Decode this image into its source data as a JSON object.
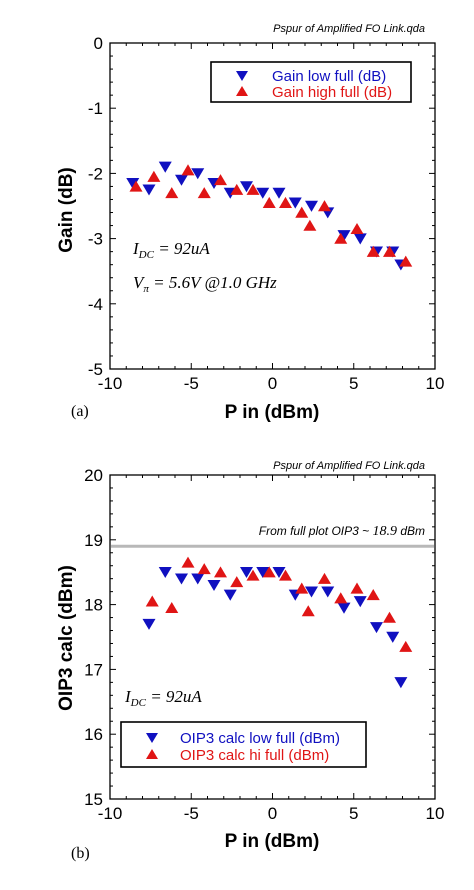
{
  "colors": {
    "low": "#1010c0",
    "high": "#e01515",
    "refline": "#b8b8b8"
  },
  "chart_data": [
    {
      "type": "scatter",
      "panel": "(a)",
      "file_label": "Pspur of Amplified FO Link.qda",
      "xlabel": "P in (dBm)",
      "ylabel": "Gain (dB)",
      "xlim": [
        -10,
        10
      ],
      "ylim": [
        -5,
        0
      ],
      "xticks": [
        -10,
        -5,
        0,
        5,
        10
      ],
      "yticks": [
        0,
        -1,
        -2,
        -3,
        -4,
        -5
      ],
      "annotations": [
        {
          "base": "I",
          "sub": "DC",
          "rest": " = 92uA"
        },
        {
          "base": "V",
          "sub": "π",
          "rest": " = 5.6V @1.0 GHz"
        }
      ],
      "series": [
        {
          "name": "Gain low full (dB)",
          "marker": "triangle-down",
          "color": "#1010c0",
          "x": [
            -8.6,
            -7.6,
            -6.6,
            -5.6,
            -4.6,
            -3.6,
            -2.6,
            -1.6,
            -0.6,
            0.4,
            1.4,
            2.4,
            3.4,
            4.4,
            5.4,
            6.4,
            7.4,
            7.9
          ],
          "y": [
            -2.15,
            -2.25,
            -1.9,
            -2.1,
            -2.0,
            -2.15,
            -2.3,
            -2.2,
            -2.3,
            -2.3,
            -2.45,
            -2.5,
            -2.6,
            -2.95,
            -3.0,
            -3.2,
            -3.2,
            -3.4
          ]
        },
        {
          "name": "Gain high full (dB)",
          "marker": "triangle-up",
          "color": "#e01515",
          "x": [
            -8.4,
            -7.3,
            -6.2,
            -5.2,
            -4.2,
            -3.2,
            -2.2,
            -1.2,
            -0.2,
            0.8,
            1.8,
            2.3,
            3.2,
            4.2,
            5.2,
            6.2,
            7.2,
            8.2
          ],
          "y": [
            -2.2,
            -2.05,
            -2.3,
            -1.95,
            -2.3,
            -2.1,
            -2.25,
            -2.25,
            -2.45,
            -2.45,
            -2.6,
            -2.8,
            -2.5,
            -3.0,
            -2.85,
            -3.2,
            -3.2,
            -3.35
          ]
        }
      ]
    },
    {
      "type": "scatter",
      "panel": "(b)",
      "file_label": "Pspur of Amplified FO Link.qda",
      "xlabel": "P in (dBm)",
      "ylabel": "OIP3 calc (dBm)",
      "xlim": [
        -10,
        10
      ],
      "ylim": [
        15,
        20
      ],
      "xticks": [
        -10,
        -5,
        0,
        5,
        10
      ],
      "yticks": [
        20,
        19,
        18,
        17,
        16,
        15
      ],
      "annotations": [
        {
          "base": "I",
          "sub": "DC",
          "rest": " = 92uA"
        }
      ],
      "reference_line": {
        "y": 18.9,
        "label_text": "From full plot OIP3 ~ ",
        "label_value": "18.9",
        "label_unit": " dBm"
      },
      "series": [
        {
          "name": "OIP3 calc low full (dBm)",
          "marker": "triangle-down",
          "color": "#1010c0",
          "x": [
            -7.6,
            -6.6,
            -5.6,
            -4.6,
            -3.6,
            -2.6,
            -1.6,
            -0.6,
            0.4,
            1.4,
            2.4,
            3.4,
            4.4,
            5.4,
            6.4,
            7.4,
            7.9
          ],
          "y": [
            17.7,
            18.5,
            18.4,
            18.4,
            18.3,
            18.15,
            18.5,
            18.5,
            18.5,
            18.15,
            18.2,
            18.2,
            17.95,
            18.05,
            17.65,
            17.5,
            16.8
          ]
        },
        {
          "name": "OIP3 calc hi full (dBm)",
          "marker": "triangle-up",
          "color": "#e01515",
          "x": [
            -7.4,
            -6.2,
            -5.2,
            -4.2,
            -3.2,
            -2.2,
            -1.2,
            -0.2,
            0.8,
            1.8,
            2.2,
            3.2,
            4.2,
            5.2,
            6.2,
            7.2,
            8.2
          ],
          "y": [
            18.05,
            17.95,
            18.65,
            18.55,
            18.5,
            18.35,
            18.45,
            18.5,
            18.45,
            18.25,
            17.9,
            18.4,
            18.1,
            18.25,
            18.15,
            17.8,
            17.35
          ]
        }
      ]
    }
  ]
}
